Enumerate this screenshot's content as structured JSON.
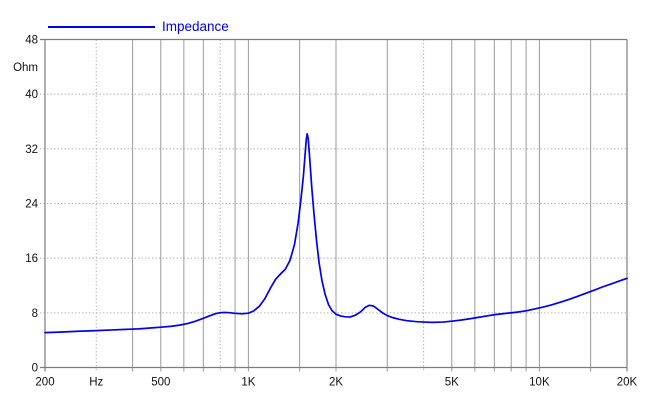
{
  "window": {
    "background": "#ffffff"
  },
  "legend": {
    "label": "Impedance",
    "color": "#0000ee"
  },
  "colors": {
    "curve": "#0000ee",
    "border": "#7d7d7d",
    "grid_solid": "#9b9b9b",
    "grid_dotted": "#b5b5b5",
    "tick_text": "#111111"
  },
  "y_axis": {
    "unit_label": "Ohm",
    "ticks": [
      {
        "v": 48,
        "label": "48"
      },
      {
        "v": 40,
        "label": "40"
      },
      {
        "v": 32,
        "label": "32"
      },
      {
        "v": 24,
        "label": "24"
      },
      {
        "v": 16,
        "label": "16"
      },
      {
        "v": 8,
        "label": "8"
      },
      {
        "v": 0,
        "label": "0"
      }
    ]
  },
  "x_axis": {
    "unit_label": "Hz",
    "unit_at": 300,
    "ticks": [
      {
        "f": 200,
        "label": "200"
      },
      {
        "f": 500,
        "label": "500"
      },
      {
        "f": 1000,
        "label": "1K"
      },
      {
        "f": 2000,
        "label": "2K"
      },
      {
        "f": 5000,
        "label": "5K"
      },
      {
        "f": 10000,
        "label": "10K"
      },
      {
        "f": 20000,
        "label": "20K"
      }
    ]
  },
  "chart_data": {
    "type": "line",
    "title": "Impedance",
    "xlabel": "Hz",
    "ylabel": "Ohm",
    "x_scale": "log",
    "xlim": [
      200,
      20000
    ],
    "ylim": [
      0,
      48
    ],
    "grid": true,
    "legend_position": "top-left",
    "y_gridlines": [
      8,
      16,
      24,
      32,
      40
    ],
    "x_gridlines": [
      300,
      400,
      500,
      600,
      700,
      800,
      900,
      1000,
      1500,
      2000,
      3000,
      4000,
      5000,
      6000,
      7000,
      8000,
      9000,
      10000,
      15000
    ],
    "dotted_x_gridlines": [
      300,
      800,
      4000
    ],
    "series": [
      {
        "name": "Impedance",
        "color": "#0000ee",
        "points": [
          [
            200,
            5.1
          ],
          [
            230,
            5.2
          ],
          [
            260,
            5.3
          ],
          [
            300,
            5.4
          ],
          [
            340,
            5.5
          ],
          [
            380,
            5.58
          ],
          [
            420,
            5.65
          ],
          [
            460,
            5.78
          ],
          [
            500,
            5.9
          ],
          [
            540,
            6.02
          ],
          [
            580,
            6.2
          ],
          [
            620,
            6.45
          ],
          [
            660,
            6.8
          ],
          [
            700,
            7.2
          ],
          [
            740,
            7.6
          ],
          [
            770,
            7.88
          ],
          [
            800,
            8.02
          ],
          [
            830,
            8.06
          ],
          [
            860,
            8.02
          ],
          [
            900,
            7.93
          ],
          [
            950,
            7.87
          ],
          [
            1000,
            7.95
          ],
          [
            1040,
            8.25
          ],
          [
            1090,
            8.95
          ],
          [
            1140,
            10.1
          ],
          [
            1190,
            11.6
          ],
          [
            1240,
            12.9
          ],
          [
            1290,
            13.7
          ],
          [
            1340,
            14.4
          ],
          [
            1390,
            15.7
          ],
          [
            1440,
            18.0
          ],
          [
            1480,
            21.0
          ],
          [
            1515,
            24.5
          ],
          [
            1545,
            28.0
          ],
          [
            1565,
            31.0
          ],
          [
            1580,
            33.3
          ],
          [
            1592,
            34.2
          ],
          [
            1605,
            33.5
          ],
          [
            1625,
            30.5
          ],
          [
            1650,
            26.5
          ],
          [
            1680,
            22.5
          ],
          [
            1715,
            18.5
          ],
          [
            1750,
            15.3
          ],
          [
            1790,
            12.7
          ],
          [
            1835,
            10.7
          ],
          [
            1885,
            9.2
          ],
          [
            1940,
            8.3
          ],
          [
            2000,
            7.8
          ],
          [
            2070,
            7.55
          ],
          [
            2150,
            7.42
          ],
          [
            2240,
            7.4
          ],
          [
            2330,
            7.65
          ],
          [
            2430,
            8.15
          ],
          [
            2520,
            8.8
          ],
          [
            2600,
            9.1
          ],
          [
            2690,
            9.0
          ],
          [
            2790,
            8.5
          ],
          [
            2890,
            8.0
          ],
          [
            3000,
            7.6
          ],
          [
            3130,
            7.3
          ],
          [
            3300,
            7.05
          ],
          [
            3500,
            6.85
          ],
          [
            3750,
            6.72
          ],
          [
            4000,
            6.65
          ],
          [
            4300,
            6.6
          ],
          [
            4650,
            6.65
          ],
          [
            5000,
            6.78
          ],
          [
            5400,
            6.95
          ],
          [
            5800,
            7.15
          ],
          [
            6200,
            7.35
          ],
          [
            6600,
            7.55
          ],
          [
            7000,
            7.72
          ],
          [
            7400,
            7.85
          ],
          [
            7900,
            7.98
          ],
          [
            8400,
            8.1
          ],
          [
            9000,
            8.3
          ],
          [
            9600,
            8.55
          ],
          [
            10300,
            8.85
          ],
          [
            11000,
            9.15
          ],
          [
            11800,
            9.55
          ],
          [
            12600,
            9.95
          ],
          [
            13500,
            10.4
          ],
          [
            14500,
            10.9
          ],
          [
            15500,
            11.35
          ],
          [
            16500,
            11.8
          ],
          [
            17700,
            12.25
          ],
          [
            18800,
            12.65
          ],
          [
            20000,
            13.05
          ]
        ]
      }
    ]
  }
}
